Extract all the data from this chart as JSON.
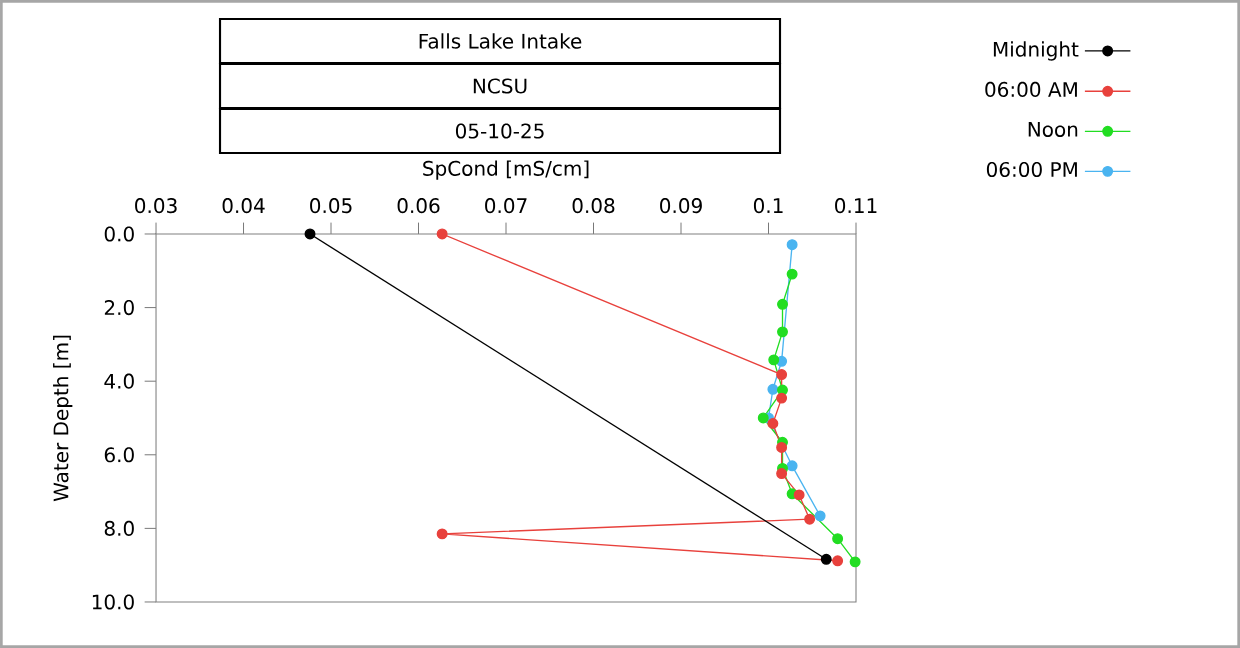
{
  "chart_data": {
    "type": "line",
    "title": "Falls Lake Intake",
    "subtitle": "NCSU",
    "annotations": [
      "05-10-25"
    ],
    "xlabel": "SpCond [mS/cm]",
    "ylabel": "Water Depth [m]",
    "xlim": [
      0.03,
      0.11
    ],
    "xticks": [
      0.03,
      0.04,
      0.05,
      0.06,
      0.07,
      0.08,
      0.09,
      0.1,
      0.11
    ],
    "ylim": [
      10,
      0
    ],
    "yticks": [
      {
        "value": 0,
        "label": "0.0"
      },
      {
        "value": 2,
        "label": "2.0"
      },
      {
        "value": 4,
        "label": "4.0"
      },
      {
        "value": 6,
        "label": "6.0"
      },
      {
        "value": 8,
        "label": "8.0"
      },
      {
        "value": 10,
        "label": "10.0"
      }
    ],
    "marker": "circle",
    "line_style": "solid",
    "legend": "top right",
    "series": [
      {
        "name": "Midnight",
        "color": "#000000",
        "x": [
          0.0476,
          0.1066
        ],
        "values": [
          0,
          8.84
        ]
      },
      {
        "name": "06:00 AM",
        "color": "#e8413c",
        "x": [
          0.0627,
          0.1015,
          0.1015,
          0.1005,
          0.1015,
          0.1015,
          0.1035,
          0.1047,
          0.0627,
          0.1079
        ],
        "values": [
          0,
          3.82,
          4.46,
          5.15,
          5.8,
          6.51,
          7.09,
          7.75,
          8.15,
          8.88
        ]
      },
      {
        "name": "Noon",
        "color": "#22dd22",
        "x": [
          0.1027,
          0.1016,
          0.1016,
          0.1006,
          0.1016,
          0.0994,
          0.1016,
          0.1016,
          0.1027,
          0.1079,
          0.1099
        ],
        "values": [
          1.09,
          1.91,
          2.66,
          3.42,
          4.24,
          5.0,
          5.66,
          6.37,
          7.06,
          8.28,
          8.91
        ]
      },
      {
        "name": "06:00 PM",
        "color": "#4ab4f0",
        "x": [
          0.1027,
          null,
          null,
          null,
          0.1015,
          0.1005,
          0.1,
          null,
          0.1027,
          0.1059,
          null
        ],
        "values": [
          0.29,
          null,
          null,
          null,
          3.46,
          4.22,
          5.0,
          null,
          6.3,
          7.66,
          null
        ]
      }
    ]
  }
}
